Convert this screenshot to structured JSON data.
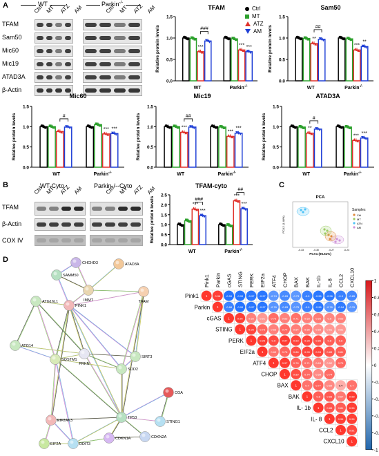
{
  "panels": {
    "A": "A",
    "B": "B",
    "C": "C",
    "D": "D"
  },
  "blotA": {
    "groups": [
      "WT",
      "Parkin"
    ],
    "group_sup": "-/-",
    "lanes": [
      "Ctrl",
      "MT",
      "ATZ",
      "AM",
      "Ctrl",
      "MT",
      "ATZ",
      "AM"
    ],
    "rows": [
      "TFAM",
      "Sam50",
      "Mic60",
      "Mic19",
      "ATAD3A",
      "β-Actin"
    ]
  },
  "blotB": {
    "groups": [
      "WT-Cyto",
      "Parkin-/--Cyto"
    ],
    "lanes": [
      "Ctrl",
      "MT",
      "ATZ",
      "AM",
      "Ctrl",
      "MT",
      "ATZ",
      "AM"
    ],
    "rows": [
      "TFAM",
      "β-Actin",
      "COX IV"
    ]
  },
  "legend": {
    "items": [
      {
        "label": "Ctrl",
        "color": "#000000"
      },
      {
        "label": "MT",
        "color": "#2ca02c"
      },
      {
        "label": "ATZ",
        "color": "#e0312b"
      },
      {
        "label": "AM",
        "color": "#1f3fd6"
      }
    ]
  },
  "chart_data": [
    {
      "type": "bar",
      "title": "TFAM",
      "ylabel": "Relative protein levels",
      "categories": [
        "WT",
        "Parkin-/-"
      ],
      "ylim": [
        0,
        1.5
      ],
      "series": [
        {
          "name": "Ctrl",
          "values": [
            1.0,
            1.0
          ]
        },
        {
          "name": "MT",
          "values": [
            0.99,
            0.98
          ]
        },
        {
          "name": "ATZ",
          "values": [
            0.68,
            0.72
          ]
        },
        {
          "name": "AM",
          "values": [
            0.93,
            0.68
          ]
        }
      ],
      "annotations": [
        "***",
        "###",
        "***",
        "***"
      ]
    },
    {
      "type": "bar",
      "title": "Sam50",
      "ylabel": "Relative protein levels",
      "categories": [
        "WT",
        "Parkin-/-"
      ],
      "ylim": [
        0,
        1.5
      ],
      "series": [
        {
          "name": "Ctrl",
          "values": [
            1.0,
            1.0
          ]
        },
        {
          "name": "MT",
          "values": [
            0.99,
            0.98
          ]
        },
        {
          "name": "ATZ",
          "values": [
            0.87,
            0.72
          ]
        },
        {
          "name": "AM",
          "values": [
            0.97,
            0.8
          ]
        }
      ],
      "annotations": [
        "**",
        "##",
        "***",
        "**"
      ]
    },
    {
      "type": "bar",
      "title": "Mic60",
      "ylabel": "Relative protein levels",
      "categories": [
        "WT",
        "Parkin-/-"
      ],
      "ylim": [
        0,
        1.5
      ],
      "series": [
        {
          "name": "Ctrl",
          "values": [
            1.0,
            1.0
          ]
        },
        {
          "name": "MT",
          "values": [
            1.0,
            1.05
          ]
        },
        {
          "name": "ATZ",
          "values": [
            0.88,
            0.82
          ]
        },
        {
          "name": "AM",
          "values": [
            0.99,
            0.83
          ]
        }
      ],
      "annotations": [
        "#",
        "***",
        "***"
      ]
    },
    {
      "type": "bar",
      "title": "Mic19",
      "ylabel": "Relative protein levels",
      "categories": [
        "WT",
        "Parkin-/-"
      ],
      "ylim": [
        0,
        1.5
      ],
      "series": [
        {
          "name": "Ctrl",
          "values": [
            1.0,
            1.0
          ]
        },
        {
          "name": "MT",
          "values": [
            1.0,
            0.99
          ]
        },
        {
          "name": "ATZ",
          "values": [
            0.86,
            0.76
          ]
        },
        {
          "name": "AM",
          "values": [
            0.99,
            0.84
          ]
        }
      ],
      "annotations": [
        "***",
        "##",
        "***",
        "***"
      ]
    },
    {
      "type": "bar",
      "title": "ATAD3A",
      "ylabel": "Relative protein levels",
      "categories": [
        "WT",
        "Parkin-/-"
      ],
      "ylim": [
        0,
        1.5
      ],
      "series": [
        {
          "name": "Ctrl",
          "values": [
            1.0,
            1.0
          ]
        },
        {
          "name": "MT",
          "values": [
            0.99,
            0.99
          ]
        },
        {
          "name": "ATZ",
          "values": [
            0.84,
            0.66
          ]
        },
        {
          "name": "AM",
          "values": [
            0.94,
            0.72
          ]
        }
      ],
      "annotations": [
        "**",
        "#",
        "***",
        "***"
      ]
    },
    {
      "type": "bar",
      "title": "TFAM-cyto",
      "ylabel": "Relative protein levels",
      "categories": [
        "WT",
        "Parkin-/-"
      ],
      "ylim": [
        0,
        2.5
      ],
      "yticks": [
        0,
        0.5,
        1.0,
        1.5,
        2.0,
        2.5
      ],
      "series": [
        {
          "name": "Ctrl",
          "values": [
            1.0,
            1.0
          ]
        },
        {
          "name": "MT",
          "values": [
            1.2,
            0.97
          ]
        },
        {
          "name": "ATZ",
          "values": [
            1.78,
            2.2
          ]
        },
        {
          "name": "AM",
          "values": [
            1.45,
            1.8
          ]
        }
      ],
      "annotations": [
        "***",
        "###",
        "***",
        "***",
        "##",
        "***"
      ]
    },
    {
      "type": "scatter",
      "title": "PCA",
      "xlabel": "PCA1 (96.61%)",
      "ylabel": "PCA2 (1.48%)",
      "xticks": [
        "-0.33",
        "-0.30",
        "-0.27",
        "-0.24"
      ],
      "legend_title": "Samples",
      "series": [
        {
          "name": "Ctrl",
          "color": "#e08a3c"
        },
        {
          "name": "MT",
          "color": "#9ccc65"
        },
        {
          "name": "ATN",
          "color": "#4fc3f7"
        },
        {
          "name": "AM",
          "color": "#ce93d8"
        }
      ]
    },
    {
      "type": "heatmap",
      "labels": [
        "Pink1",
        "Parkin",
        "cGAS",
        "STING",
        "PERK",
        "EIF2a",
        "ATF4",
        "CHOP",
        "BAX",
        "BAK",
        "IL-1b",
        "IL-8",
        "CCL2",
        "CXCL10"
      ],
      "row_labels": [
        "Pink1",
        "Parkin",
        "cGAS",
        "STING",
        "PERK",
        "EIF2a",
        "ATF4",
        "CHOP",
        "BAX",
        "BAK",
        "IL- 1b",
        "IL- 8",
        "CCL2",
        "CXCL10"
      ],
      "upper": [
        [
          1,
          0.96,
          -0.99,
          -0.99,
          -0.97,
          -0.97,
          -0.74,
          -0.83,
          -0.73,
          -0.9,
          -0.96,
          -0.96,
          -0.9,
          -0.85
        ],
        [
          1,
          -0.88,
          -0.99,
          -0.97,
          -0.97,
          -0.76,
          -0.83,
          -0.75,
          -0.9,
          -0.96,
          -0.76,
          -0.94,
          -0.76
        ],
        [
          1,
          0.96,
          0.63,
          0.51,
          0.73,
          0.63,
          0.71,
          0.63,
          0.66,
          0.6,
          0.63
        ],
        [
          1,
          0.93,
          0.76,
          0.63,
          0.74,
          0.64,
          0.65,
          0.56,
          0.51,
          0.51
        ],
        [
          1,
          0.96,
          0.9,
          0.97,
          0.93,
          0.93,
          0.86,
          0.8,
          0.8
        ],
        [
          1,
          0.69,
          0.76,
          0.88,
          0.93,
          0.93,
          0.83,
          0.81
        ],
        [
          1,
          0.97,
          0.78,
          0.71,
          0.63,
          0.52,
          0.75
        ],
        [
          1,
          0.89,
          0.74,
          0.58,
          0.74
        ],
        [
          1,
          0.7,
          0.77,
          0.59,
          0.4,
          0.7
        ],
        [
          1,
          0.8,
          0.83,
          0.67,
          0.98
        ],
        [
          1,
          0.85,
          0.81,
          0.96
        ],
        [
          1,
          0.96,
          0.96
        ],
        [
          1,
          0.91
        ],
        [
          1
        ]
      ],
      "colorbar": [
        "1",
        "0.8",
        "0.6",
        "0.4",
        "0.2",
        "0",
        "-0.2",
        "-0.4",
        "-0.6",
        "-0.8",
        "-1"
      ]
    },
    {
      "type": "network",
      "nodes": [
        "CHCHD3",
        "ATAD3A",
        "SAMM50",
        "IMMT",
        "TFAM",
        "ATG16L1",
        "PINK1",
        "ATG14",
        "PRKN",
        "SIRT3",
        "SQSTM1",
        "SOD2",
        "CGAS",
        "TP53",
        "STING1",
        "EIF2AK3",
        "CDKN2A",
        "CDKN1A",
        "EIF2A",
        "DDIT3"
      ]
    }
  ]
}
